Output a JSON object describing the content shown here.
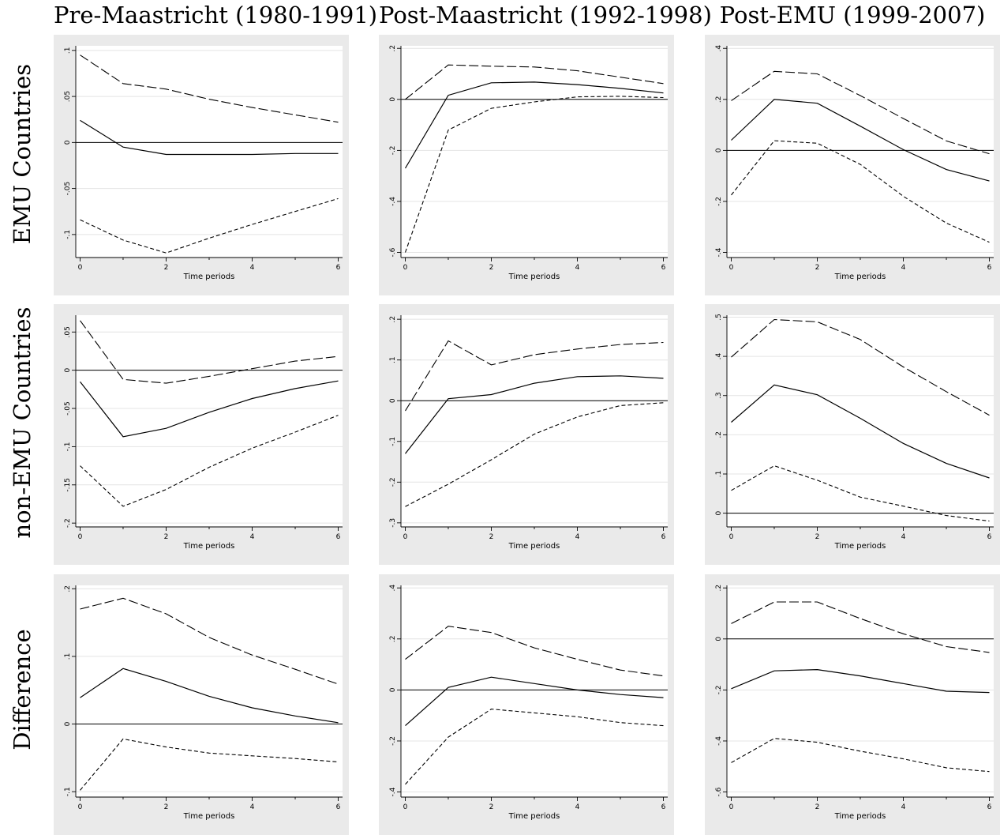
{
  "column_titles": [
    "Pre-Maastricht (1980-1991)",
    "Post-Maastricht (1992-1998)",
    "Post-EMU (1999-2007)"
  ],
  "row_titles": [
    "EMU Countries",
    "non-EMU Countries",
    "Difference"
  ],
  "chart_data": [
    {
      "type": "line",
      "row": 0,
      "col": 0,
      "xlabel": "Time periods",
      "x": [
        0,
        1,
        2,
        3,
        4,
        5,
        6
      ],
      "xticks": [
        "0",
        "2",
        "4",
        "6"
      ],
      "ylim": [
        -0.125,
        0.105
      ],
      "yticks": [
        {
          "v": 0.1,
          "label": ".1"
        },
        {
          "v": 0.05,
          "label": ".05"
        },
        {
          "v": 0,
          "label": "0"
        },
        {
          "v": -0.05,
          "label": "-.05"
        },
        {
          "v": -0.1,
          "label": "-.1"
        }
      ],
      "series": [
        {
          "role": "estimate",
          "values": [
            0.024,
            -0.005,
            -0.013,
            -0.013,
            -0.013,
            -0.012,
            -0.012
          ]
        },
        {
          "role": "upper",
          "values": [
            0.095,
            0.064,
            0.058,
            0.047,
            0.038,
            0.03,
            0.022
          ]
        },
        {
          "role": "lower",
          "values": [
            -0.084,
            -0.106,
            -0.12,
            -0.104,
            -0.089,
            -0.075,
            -0.061
          ]
        }
      ]
    },
    {
      "type": "line",
      "row": 0,
      "col": 1,
      "xlabel": "Time periods",
      "x": [
        0,
        1,
        2,
        3,
        4,
        5,
        6
      ],
      "xticks": [
        "0",
        "2",
        "4",
        "6"
      ],
      "ylim": [
        -0.62,
        0.21
      ],
      "yticks": [
        {
          "v": 0.2,
          "label": ".2"
        },
        {
          "v": 0,
          "label": "0"
        },
        {
          "v": -0.2,
          "label": "-.2"
        },
        {
          "v": -0.4,
          "label": "-.4"
        },
        {
          "v": -0.6,
          "label": "-.6"
        }
      ],
      "series": [
        {
          "role": "estimate",
          "values": [
            -0.27,
            0.016,
            0.065,
            0.068,
            0.058,
            0.043,
            0.025
          ]
        },
        {
          "role": "upper",
          "values": [
            0.0,
            0.135,
            0.13,
            0.127,
            0.112,
            0.087,
            0.062
          ]
        },
        {
          "role": "lower",
          "values": [
            -0.6,
            -0.12,
            -0.035,
            -0.01,
            0.01,
            0.012,
            0.007
          ]
        }
      ]
    },
    {
      "type": "line",
      "row": 0,
      "col": 2,
      "xlabel": "Time periods",
      "x": [
        0,
        1,
        2,
        3,
        4,
        5,
        6
      ],
      "xticks": [
        "0",
        "2",
        "4",
        "6"
      ],
      "ylim": [
        -0.42,
        0.41
      ],
      "yticks": [
        {
          "v": 0.4,
          "label": ".4"
        },
        {
          "v": 0.2,
          "label": ".2"
        },
        {
          "v": 0,
          "label": "0"
        },
        {
          "v": -0.2,
          "label": "-.2"
        },
        {
          "v": -0.4,
          "label": "-.4"
        }
      ],
      "series": [
        {
          "role": "estimate",
          "values": [
            0.04,
            0.2,
            0.185,
            0.095,
            0.003,
            -0.075,
            -0.12
          ]
        },
        {
          "role": "upper",
          "values": [
            0.195,
            0.31,
            0.3,
            0.215,
            0.125,
            0.037,
            -0.013
          ]
        },
        {
          "role": "lower",
          "values": [
            -0.175,
            0.038,
            0.028,
            -0.055,
            -0.18,
            -0.285,
            -0.36
          ]
        }
      ]
    },
    {
      "type": "line",
      "row": 1,
      "col": 0,
      "xlabel": "Time periods",
      "x": [
        0,
        1,
        2,
        3,
        4,
        5,
        6
      ],
      "xticks": [
        "0",
        "2",
        "4",
        "6"
      ],
      "ylim": [
        -0.205,
        0.072
      ],
      "yticks": [
        {
          "v": 0.05,
          "label": ".05"
        },
        {
          "v": 0,
          "label": "0"
        },
        {
          "v": -0.05,
          "label": "-.05"
        },
        {
          "v": -0.1,
          "label": "-.1"
        },
        {
          "v": -0.15,
          "label": "-.15"
        },
        {
          "v": -0.2,
          "label": "-.2"
        }
      ],
      "series": [
        {
          "role": "estimate",
          "values": [
            -0.015,
            -0.087,
            -0.076,
            -0.055,
            -0.037,
            -0.024,
            -0.014
          ]
        },
        {
          "role": "upper",
          "values": [
            0.065,
            -0.012,
            -0.017,
            -0.008,
            0.002,
            0.012,
            0.018
          ]
        },
        {
          "role": "lower",
          "values": [
            -0.125,
            -0.178,
            -0.156,
            -0.127,
            -0.102,
            -0.081,
            -0.059
          ]
        }
      ]
    },
    {
      "type": "line",
      "row": 1,
      "col": 1,
      "xlabel": "Time periods",
      "x": [
        0,
        1,
        2,
        3,
        4,
        5,
        6
      ],
      "xticks": [
        "0",
        "2",
        "4",
        "6"
      ],
      "ylim": [
        -0.31,
        0.21
      ],
      "yticks": [
        {
          "v": 0.2,
          "label": ".2"
        },
        {
          "v": 0.1,
          "label": ".1"
        },
        {
          "v": 0,
          "label": "0"
        },
        {
          "v": -0.1,
          "label": "-.1"
        },
        {
          "v": -0.2,
          "label": "-.2"
        },
        {
          "v": -0.3,
          "label": "-.3"
        }
      ],
      "series": [
        {
          "role": "estimate",
          "values": [
            -0.13,
            0.005,
            0.015,
            0.043,
            0.059,
            0.061,
            0.055
          ]
        },
        {
          "role": "upper",
          "values": [
            -0.025,
            0.147,
            0.088,
            0.113,
            0.127,
            0.138,
            0.143
          ]
        },
        {
          "role": "lower",
          "values": [
            -0.26,
            -0.205,
            -0.145,
            -0.082,
            -0.04,
            -0.012,
            -0.005
          ]
        }
      ]
    },
    {
      "type": "line",
      "row": 1,
      "col": 2,
      "xlabel": "Time periods",
      "x": [
        0,
        1,
        2,
        3,
        4,
        5,
        6
      ],
      "xticks": [
        "0",
        "2",
        "4",
        "6"
      ],
      "ylim": [
        -0.035,
        0.505
      ],
      "yticks": [
        {
          "v": 0.5,
          "label": ".5"
        },
        {
          "v": 0.4,
          "label": ".4"
        },
        {
          "v": 0.3,
          "label": ".3"
        },
        {
          "v": 0.2,
          "label": ".2"
        },
        {
          "v": 0.1,
          "label": ".1"
        },
        {
          "v": 0,
          "label": "0"
        }
      ],
      "series": [
        {
          "role": "estimate",
          "values": [
            0.232,
            0.327,
            0.302,
            0.242,
            0.178,
            0.127,
            0.09
          ]
        },
        {
          "role": "upper",
          "values": [
            0.398,
            0.494,
            0.488,
            0.443,
            0.373,
            0.31,
            0.25
          ]
        },
        {
          "role": "lower",
          "values": [
            0.058,
            0.121,
            0.084,
            0.041,
            0.018,
            -0.006,
            -0.02
          ]
        }
      ]
    },
    {
      "type": "line",
      "row": 2,
      "col": 0,
      "xlabel": "Time periods",
      "x": [
        0,
        1,
        2,
        3,
        4,
        5,
        6
      ],
      "xticks": [
        "0",
        "2",
        "4",
        "6"
      ],
      "ylim": [
        -0.108,
        0.205
      ],
      "yticks": [
        {
          "v": 0.2,
          "label": ".2"
        },
        {
          "v": 0.1,
          "label": ".1"
        },
        {
          "v": 0,
          "label": "0"
        },
        {
          "v": -0.1,
          "label": "-.1"
        }
      ],
      "series": [
        {
          "role": "estimate",
          "values": [
            0.039,
            0.082,
            0.063,
            0.041,
            0.024,
            0.012,
            0.002
          ]
        },
        {
          "role": "upper",
          "values": [
            0.17,
            0.186,
            0.163,
            0.128,
            0.102,
            0.081,
            0.059
          ]
        },
        {
          "role": "lower",
          "values": [
            -0.098,
            -0.022,
            -0.034,
            -0.043,
            -0.047,
            -0.051,
            -0.056
          ]
        }
      ]
    },
    {
      "type": "line",
      "row": 2,
      "col": 1,
      "xlabel": "Time periods",
      "x": [
        0,
        1,
        2,
        3,
        4,
        5,
        6
      ],
      "xticks": [
        "0",
        "2",
        "4",
        "6"
      ],
      "ylim": [
        -0.42,
        0.41
      ],
      "yticks": [
        {
          "v": 0.4,
          "label": ".4"
        },
        {
          "v": 0.2,
          "label": ".2"
        },
        {
          "v": 0,
          "label": "0"
        },
        {
          "v": -0.2,
          "label": "-.2"
        },
        {
          "v": -0.4,
          "label": "-.4"
        }
      ],
      "series": [
        {
          "role": "estimate",
          "values": [
            -0.14,
            0.01,
            0.05,
            0.025,
            0.0,
            -0.018,
            -0.03
          ]
        },
        {
          "role": "upper",
          "values": [
            0.12,
            0.25,
            0.225,
            0.165,
            0.12,
            0.078,
            0.055
          ]
        },
        {
          "role": "lower",
          "values": [
            -0.37,
            -0.185,
            -0.075,
            -0.09,
            -0.105,
            -0.128,
            -0.14
          ]
        }
      ]
    },
    {
      "type": "line",
      "row": 2,
      "col": 2,
      "xlabel": "Time periods",
      "x": [
        0,
        1,
        2,
        3,
        4,
        5,
        6
      ],
      "xticks": [
        "0",
        "2",
        "4",
        "6"
      ],
      "ylim": [
        -0.62,
        0.21
      ],
      "yticks": [
        {
          "v": 0.2,
          "label": ".2"
        },
        {
          "v": 0,
          "label": "0"
        },
        {
          "v": -0.2,
          "label": "-.2"
        },
        {
          "v": -0.4,
          "label": "-.4"
        },
        {
          "v": -0.6,
          "label": "-.6"
        }
      ],
      "series": [
        {
          "role": "estimate",
          "values": [
            -0.195,
            -0.125,
            -0.12,
            -0.145,
            -0.175,
            -0.205,
            -0.21
          ]
        },
        {
          "role": "upper",
          "values": [
            0.06,
            0.145,
            0.145,
            0.08,
            0.02,
            -0.03,
            -0.053
          ]
        },
        {
          "role": "lower",
          "values": [
            -0.485,
            -0.39,
            -0.405,
            -0.44,
            -0.47,
            -0.505,
            -0.52
          ]
        }
      ]
    }
  ]
}
